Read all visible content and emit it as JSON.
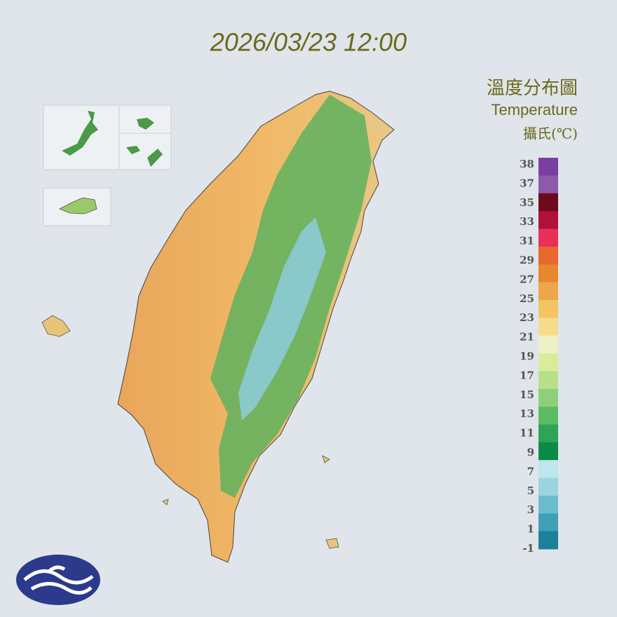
{
  "header": {
    "timestamp": "2026/03/23 12:00"
  },
  "legend": {
    "title": "溫度分布圖",
    "subtitle": "Temperature",
    "unit": "攝氏(℃)",
    "labels": [
      "38",
      "37",
      "35",
      "33",
      "31",
      "29",
      "27",
      "25",
      "23",
      "21",
      "19",
      "17",
      "15",
      "13",
      "11",
      "9",
      "7",
      "5",
      "3",
      "1",
      "-1"
    ]
  }
}
